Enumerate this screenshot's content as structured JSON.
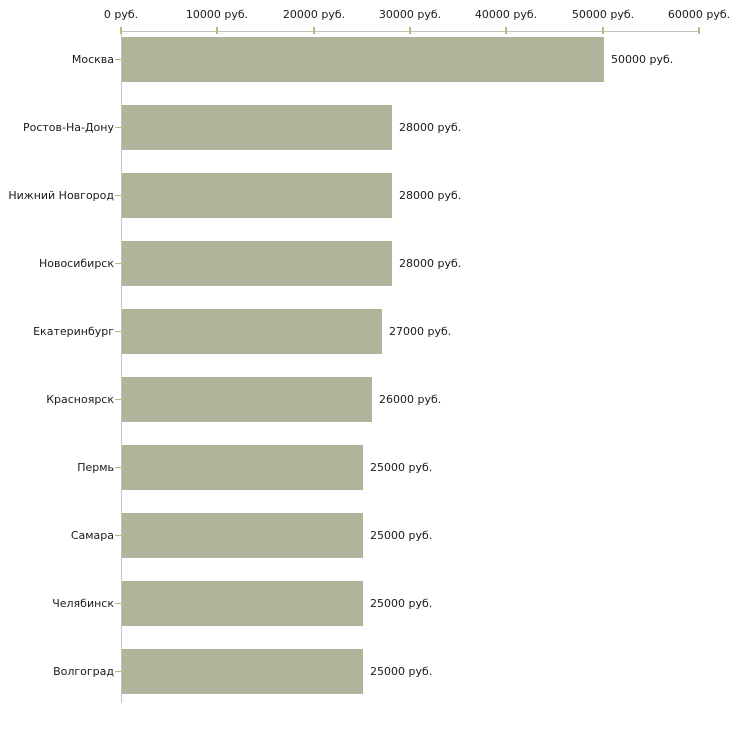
{
  "chart_data": {
    "type": "bar",
    "orientation": "horizontal",
    "title": "",
    "xlabel": "",
    "ylabel": "",
    "xlim": [
      0,
      60000
    ],
    "x_axis_position": "top",
    "grid": false,
    "legend": false,
    "x_ticks": [
      {
        "value": 0,
        "label": "0 руб."
      },
      {
        "value": 10000,
        "label": "10000 руб."
      },
      {
        "value": 20000,
        "label": "20000 руб."
      },
      {
        "value": 30000,
        "label": "30000 руб."
      },
      {
        "value": 40000,
        "label": "40000 руб."
      },
      {
        "value": 50000,
        "label": "50000 руб."
      },
      {
        "value": 60000,
        "label": "60000 руб."
      }
    ],
    "categories": [
      "Москва",
      "Ростов-На-Дону",
      "Нижний Новгород",
      "Новосибирск",
      "Екатеринбург",
      "Красноярск",
      "Пермь",
      "Самара",
      "Челябинск",
      "Волгоград"
    ],
    "values": [
      50000,
      28000,
      28000,
      28000,
      27000,
      26000,
      25000,
      25000,
      25000,
      25000
    ],
    "bars": [
      {
        "category": "Москва",
        "value": 50000,
        "value_label": "50000 руб."
      },
      {
        "category": "Ростов-На-Дону",
        "value": 28000,
        "value_label": "28000 руб."
      },
      {
        "category": "Нижний Новгород",
        "value": 28000,
        "value_label": "28000 руб."
      },
      {
        "category": "Новосибирск",
        "value": 28000,
        "value_label": "28000 руб."
      },
      {
        "category": "Екатеринбург",
        "value": 27000,
        "value_label": "27000 руб."
      },
      {
        "category": "Красноярск",
        "value": 26000,
        "value_label": "26000 руб."
      },
      {
        "category": "Пермь",
        "value": 25000,
        "value_label": "25000 руб."
      },
      {
        "category": "Самара",
        "value": 25000,
        "value_label": "25000 руб."
      },
      {
        "category": "Челябинск",
        "value": 25000,
        "value_label": "25000 руб."
      },
      {
        "category": "Волгоград",
        "value": 25000,
        "value_label": "25000 руб."
      }
    ],
    "colors": {
      "bar": "#b0b49b",
      "axis_line": "#c4c4c4",
      "tick": "#c2b57c",
      "label_text": "#1a1a1a",
      "background": "#ffffff"
    }
  }
}
